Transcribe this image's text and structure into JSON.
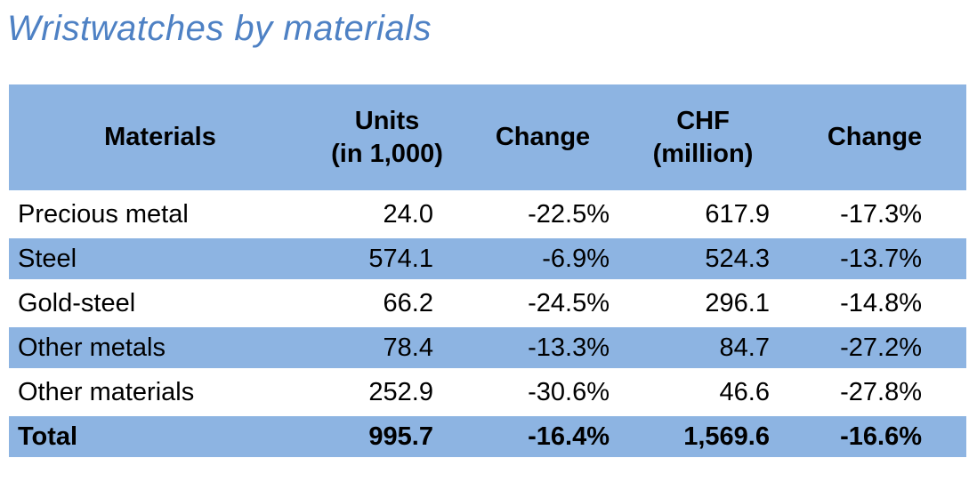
{
  "title": "Wristwatches by materials",
  "colors": {
    "title_text": "#4e81c4",
    "header_bg": "#8db4e2",
    "alt_row_bg": "#8db4e2",
    "body_text": "#000000"
  },
  "table": {
    "columns": [
      {
        "label": "Materials"
      },
      {
        "label": "Units\n(in 1,000)"
      },
      {
        "label": "Change"
      },
      {
        "label": "CHF\n(million)"
      },
      {
        "label": "Change"
      }
    ],
    "rows": [
      {
        "material": "Precious metal",
        "units": "24.0",
        "units_change": "-22.5%",
        "chf": "617.9",
        "chf_change": "-17.3%",
        "is_total": false
      },
      {
        "material": "Steel",
        "units": "574.1",
        "units_change": "-6.9%",
        "chf": "524.3",
        "chf_change": "-13.7%",
        "is_total": false
      },
      {
        "material": "Gold-steel",
        "units": "66.2",
        "units_change": "-24.5%",
        "chf": "296.1",
        "chf_change": "-14.8%",
        "is_total": false
      },
      {
        "material": "Other metals",
        "units": "78.4",
        "units_change": "-13.3%",
        "chf": "84.7",
        "chf_change": "-27.2%",
        "is_total": false
      },
      {
        "material": "Other materials",
        "units": "252.9",
        "units_change": "-30.6%",
        "chf": "46.6",
        "chf_change": "-27.8%",
        "is_total": false
      },
      {
        "material": "Total",
        "units": "995.7",
        "units_change": "-16.4%",
        "chf": "1,569.6",
        "chf_change": "-16.6%",
        "is_total": true
      }
    ]
  },
  "chart_data": {
    "type": "table",
    "title": "Wristwatches by materials",
    "columns": [
      "Materials",
      "Units (in 1,000)",
      "Change",
      "CHF (million)",
      "Change"
    ],
    "rows": [
      [
        "Precious metal",
        24.0,
        "-22.5%",
        617.9,
        "-17.3%"
      ],
      [
        "Steel",
        574.1,
        "-6.9%",
        524.3,
        "-13.7%"
      ],
      [
        "Gold-steel",
        66.2,
        "-24.5%",
        296.1,
        "-14.8%"
      ],
      [
        "Other metals",
        78.4,
        "-13.3%",
        84.7,
        "-27.2%"
      ],
      [
        "Other materials",
        252.9,
        "-30.6%",
        46.6,
        "-27.8%"
      ],
      [
        "Total",
        995.7,
        "-16.4%",
        1569.6,
        "-16.6%"
      ]
    ],
    "layout_hints": {
      "zebra_striping": "white / light-blue alternating, header and total emphasized",
      "numeric_alignment": "right",
      "label_alignment": "left"
    }
  }
}
